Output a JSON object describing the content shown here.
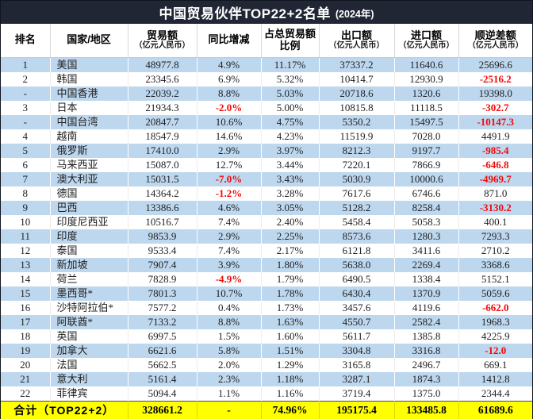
{
  "title": {
    "main": "中国贸易伙伴TOP22+2名单",
    "year": "(2024年)"
  },
  "colors": {
    "header_bg": "#202634",
    "header_text": "#ffffff",
    "alt_row": "#bdd7ee",
    "negative": "#f00a0a",
    "total_bg": "#ffff00"
  },
  "chart_data": {
    "type": "table",
    "title": "中国贸易伙伴TOP22+2名单 (2024年)",
    "columns": [
      {
        "line1": "排名",
        "line2": ""
      },
      {
        "line1": "国家/地区",
        "line2": ""
      },
      {
        "line1": "贸易额",
        "line2": "（亿元人民币）"
      },
      {
        "line1": "同比增减",
        "line2": ""
      },
      {
        "line1": "占总贸易额",
        "line2": "比例"
      },
      {
        "line1": "出口额",
        "line2": "（亿元人民币）"
      },
      {
        "line1": "进口额",
        "line2": "（亿元人民币）"
      },
      {
        "line1": "顺逆差额",
        "line2": "（亿元人民币）"
      }
    ],
    "rows": [
      [
        "1",
        "美国",
        "48977.8",
        "4.9%",
        "11.17%",
        "37337.2",
        "11640.6",
        "25696.6"
      ],
      [
        "2",
        "韩国",
        "23345.6",
        "6.9%",
        "5.32%",
        "10414.7",
        "12930.9",
        "-2516.2"
      ],
      [
        "-",
        "中国香港",
        "22039.2",
        "8.8%",
        "5.03%",
        "20718.6",
        "1320.6",
        "19398.0"
      ],
      [
        "3",
        "日本",
        "21934.3",
        "-2.0%",
        "5.00%",
        "10815.8",
        "11118.5",
        "-302.7"
      ],
      [
        "-",
        "中国台湾",
        "20847.7",
        "10.6%",
        "4.75%",
        "5350.2",
        "15497.5",
        "-10147.3"
      ],
      [
        "4",
        "越南",
        "18547.9",
        "14.6%",
        "4.23%",
        "11519.9",
        "7028.0",
        "4491.9"
      ],
      [
        "5",
        "俄罗斯",
        "17410.0",
        "2.9%",
        "3.97%",
        "8212.3",
        "9197.7",
        "-985.4"
      ],
      [
        "6",
        "马来西亚",
        "15087.0",
        "12.7%",
        "3.44%",
        "7220.1",
        "7866.9",
        "-646.8"
      ],
      [
        "7",
        "澳大利亚",
        "15031.5",
        "-7.0%",
        "3.43%",
        "5030.9",
        "10000.6",
        "-4969.7"
      ],
      [
        "8",
        "德国",
        "14364.2",
        "-1.2%",
        "3.28%",
        "7617.6",
        "6746.6",
        "871.0"
      ],
      [
        "9",
        "巴西",
        "13386.6",
        "4.6%",
        "3.05%",
        "5128.2",
        "8258.4",
        "-3130.2"
      ],
      [
        "10",
        "印度尼西亚",
        "10516.7",
        "7.4%",
        "2.40%",
        "5458.4",
        "5058.3",
        "400.1"
      ],
      [
        "11",
        "印度",
        "9853.9",
        "2.9%",
        "2.25%",
        "8573.6",
        "1280.3",
        "7293.3"
      ],
      [
        "12",
        "泰国",
        "9533.4",
        "7.4%",
        "2.17%",
        "6121.8",
        "3411.6",
        "2710.2"
      ],
      [
        "13",
        "新加坡",
        "7907.4",
        "3.9%",
        "1.80%",
        "5638.0",
        "2269.4",
        "3368.6"
      ],
      [
        "14",
        "荷兰",
        "7828.9",
        "-4.9%",
        "1.79%",
        "6490.5",
        "1338.4",
        "5152.1"
      ],
      [
        "15",
        "墨西哥*",
        "7801.3",
        "10.7%",
        "1.78%",
        "6430.4",
        "1370.9",
        "5059.6"
      ],
      [
        "16",
        "沙特阿拉伯*",
        "7577.2",
        "0.4%",
        "1.73%",
        "3457.6",
        "4119.6",
        "-662.0"
      ],
      [
        "17",
        "阿联酋*",
        "7133.2",
        "8.8%",
        "1.63%",
        "4550.7",
        "2582.4",
        "1968.3"
      ],
      [
        "18",
        "英国",
        "6997.5",
        "1.5%",
        "1.60%",
        "5611.7",
        "1385.8",
        "4225.9"
      ],
      [
        "19",
        "加拿大",
        "6621.6",
        "5.8%",
        "1.51%",
        "3304.8",
        "3316.8",
        "-12.0"
      ],
      [
        "20",
        "法国",
        "5662.5",
        "2.0%",
        "1.29%",
        "3165.8",
        "2496.7",
        "669.1"
      ],
      [
        "21",
        "意大利",
        "5161.4",
        "2.3%",
        "1.18%",
        "3287.1",
        "1874.3",
        "1412.8"
      ],
      [
        "22",
        "菲律宾",
        "5094.4",
        "1.1%",
        "1.16%",
        "3719.4",
        "1375.0",
        "2344.4"
      ]
    ],
    "total": {
      "label": "合计（TOP22+2）",
      "values": [
        "328661.2",
        "-",
        "74.96%",
        "195175.4",
        "133485.8",
        "61689.6"
      ]
    }
  }
}
